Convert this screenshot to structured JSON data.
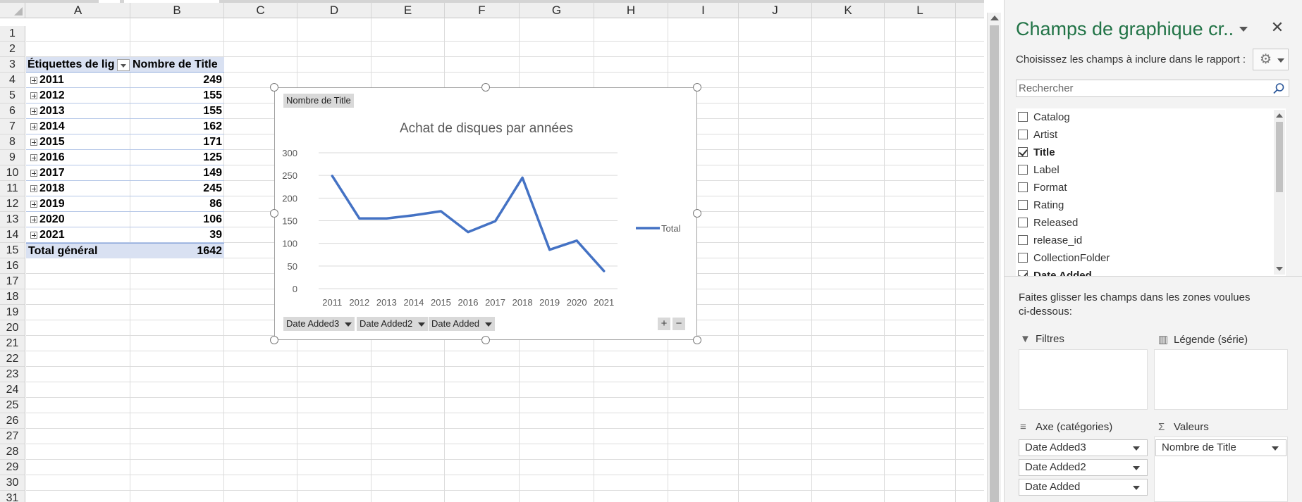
{
  "sheet": {
    "columns": [
      "A",
      "B",
      "C",
      "D",
      "E",
      "F",
      "G",
      "H",
      "I",
      "J",
      "K",
      "L"
    ],
    "rows": [
      "1",
      "2",
      "3",
      "4",
      "5",
      "6",
      "7",
      "8",
      "9",
      "10",
      "11",
      "12",
      "13",
      "14",
      "15",
      "16",
      "17",
      "18",
      "19",
      "20",
      "21",
      "22",
      "23",
      "24",
      "25",
      "26",
      "27",
      "28",
      "29",
      "30",
      "31"
    ]
  },
  "pivot": {
    "header_a": "Étiquettes de lig",
    "header_b": "Nombre de Title",
    "rows": [
      {
        "label": "2011",
        "value": "249"
      },
      {
        "label": "2012",
        "value": "155"
      },
      {
        "label": "2013",
        "value": "155"
      },
      {
        "label": "2014",
        "value": "162"
      },
      {
        "label": "2015",
        "value": "171"
      },
      {
        "label": "2016",
        "value": "125"
      },
      {
        "label": "2017",
        "value": "149"
      },
      {
        "label": "2018",
        "value": "245"
      },
      {
        "label": "2019",
        "value": "86"
      },
      {
        "label": "2020",
        "value": "106"
      },
      {
        "label": "2021",
        "value": "39"
      }
    ],
    "total_label": "Total général",
    "total_value": "1642"
  },
  "chart_data": {
    "type": "line",
    "title": "Achat de disques par années",
    "categories": [
      "2011",
      "2012",
      "2013",
      "2014",
      "2015",
      "2016",
      "2017",
      "2018",
      "2019",
      "2020",
      "2021"
    ],
    "series": [
      {
        "name": "Total",
        "values": [
          249,
          155,
          155,
          162,
          171,
          125,
          149,
          245,
          86,
          106,
          39
        ],
        "color": "#4472c4"
      }
    ],
    "ylim": [
      0,
      300
    ],
    "yticks": [
      "300",
      "250",
      "200",
      "150",
      "100",
      "50",
      "0"
    ],
    "grid": true,
    "legend_position": "right",
    "value_field_button": "Nombre de Title",
    "axis_field_buttons": [
      "Date Added3",
      "Date Added2",
      "Date Added"
    ],
    "zoom_in": "+",
    "zoom_out": "−"
  },
  "pane": {
    "title": "Champs de graphique cr..",
    "close_glyph": "✕",
    "subtitle": "Choisissez les champs à inclure dans le rapport :",
    "search_placeholder": "Rechercher",
    "fields": [
      {
        "label": "Catalog",
        "checked": false
      },
      {
        "label": "Artist",
        "checked": false
      },
      {
        "label": "Title",
        "checked": true
      },
      {
        "label": "Label",
        "checked": false
      },
      {
        "label": "Format",
        "checked": false
      },
      {
        "label": "Rating",
        "checked": false
      },
      {
        "label": "Released",
        "checked": false
      },
      {
        "label": "release_id",
        "checked": false
      },
      {
        "label": "CollectionFolder",
        "checked": false
      },
      {
        "label": "Date Added",
        "checked": true
      }
    ],
    "hint": "Faites glisser les champs dans les zones voulues ci-dessous:",
    "zones": {
      "filters": "Filtres",
      "legend": "Légende (série)",
      "axis": "Axe (catégories)",
      "values": "Valeurs"
    },
    "axis_items": [
      "Date Added3",
      "Date Added2",
      "Date Added"
    ],
    "value_items": [
      "Nombre de Title"
    ]
  },
  "colors": {
    "accent": "#217346",
    "series": "#4472c4",
    "pivot_header": "#d9e1f2"
  }
}
